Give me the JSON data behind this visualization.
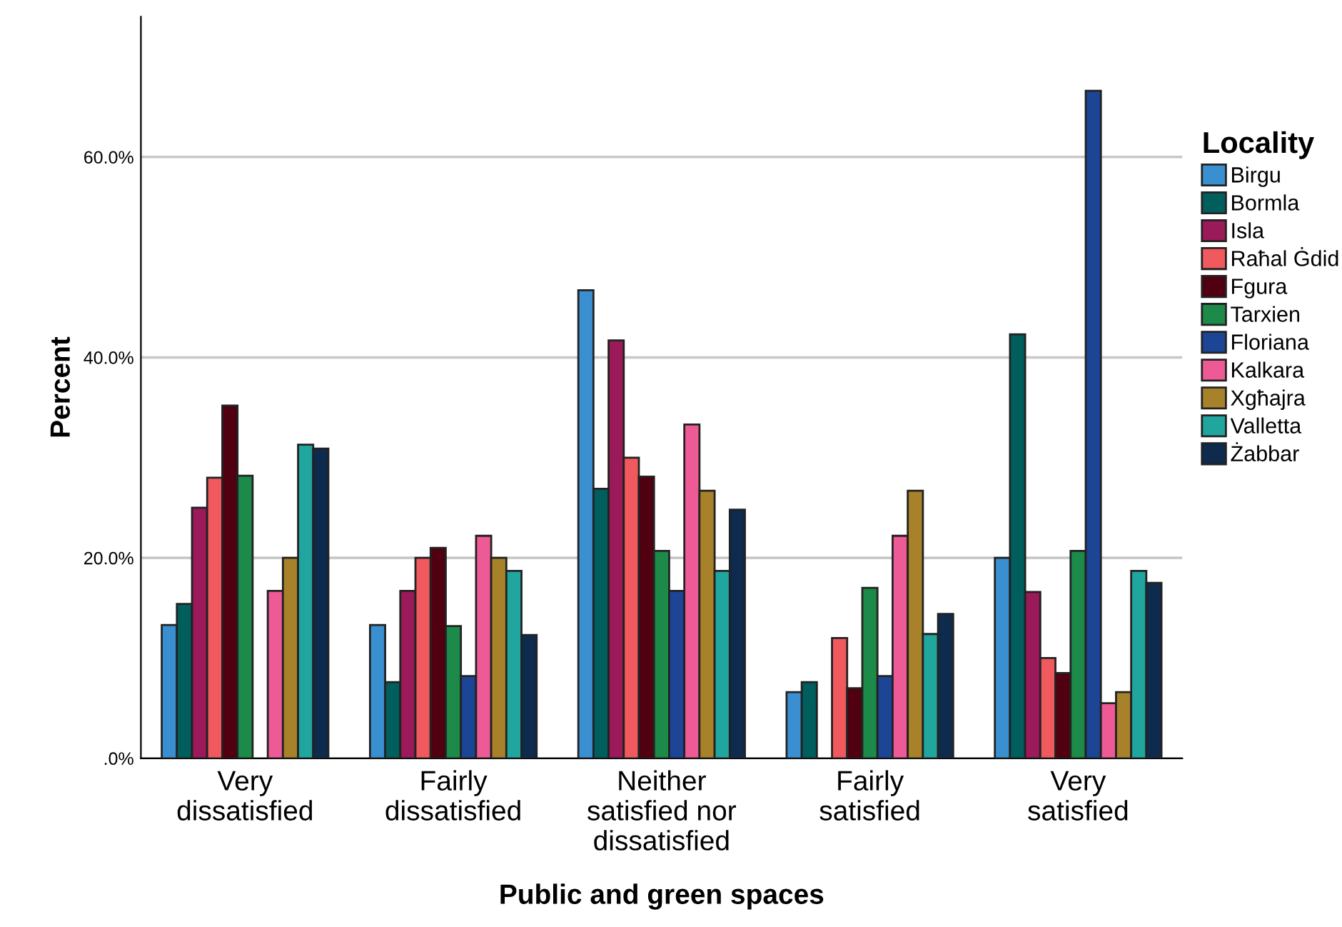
{
  "chart_data": {
    "type": "bar",
    "xlabel": "Public and green spaces",
    "ylabel": "Percent",
    "legend_title": "Locality",
    "categories": [
      "Very\ndissatisfied",
      "Fairly\ndissatisfied",
      "Neither\nsatisfied nor\ndissatisfied",
      "Fairly\nsatisfied",
      "Very\nsatisfied"
    ],
    "series": [
      {
        "name": "Birgu",
        "color": "#3a8fd0",
        "values": [
          13.3,
          13.3,
          46.7,
          6.6,
          20.0
        ]
      },
      {
        "name": "Bormla",
        "color": "#005e5c",
        "values": [
          15.4,
          7.6,
          26.9,
          7.6,
          42.3
        ]
      },
      {
        "name": "Isla",
        "color": "#9a1a5a",
        "values": [
          25.0,
          16.7,
          41.7,
          null,
          16.6
        ]
      },
      {
        "name": "Raħal Ġdid",
        "color": "#f05a5e",
        "values": [
          28.0,
          20.0,
          30.0,
          12.0,
          10.0
        ]
      },
      {
        "name": "Fgura",
        "color": "#500010",
        "values": [
          35.2,
          21.0,
          28.1,
          7.0,
          8.5
        ]
      },
      {
        "name": "Tarxien",
        "color": "#1c8a48",
        "values": [
          28.2,
          13.2,
          20.7,
          17.0,
          20.7
        ]
      },
      {
        "name": "Floriana",
        "color": "#1c4596",
        "values": [
          null,
          8.2,
          16.7,
          8.2,
          66.6
        ]
      },
      {
        "name": "Kalkara",
        "color": "#ee5a95",
        "values": [
          16.7,
          22.2,
          33.3,
          22.2,
          5.5
        ]
      },
      {
        "name": "Xgħajra",
        "color": "#a8822a",
        "values": [
          20.0,
          20.0,
          26.7,
          26.7,
          6.6
        ]
      },
      {
        "name": "Valletta",
        "color": "#20a69e",
        "values": [
          31.3,
          18.7,
          18.7,
          12.4,
          18.7
        ]
      },
      {
        "name": "Żabbar",
        "color": "#0e2a4c",
        "values": [
          30.9,
          12.3,
          24.8,
          14.4,
          17.5
        ]
      }
    ],
    "ylim": [
      0,
      74
    ],
    "yticks": [
      {
        "value": 0,
        "label": ".0%"
      },
      {
        "value": 20,
        "label": "20.0%"
      },
      {
        "value": 40,
        "label": "40.0%"
      },
      {
        "value": 60,
        "label": "60.0%"
      }
    ],
    "grid": "y",
    "legend": "right"
  }
}
